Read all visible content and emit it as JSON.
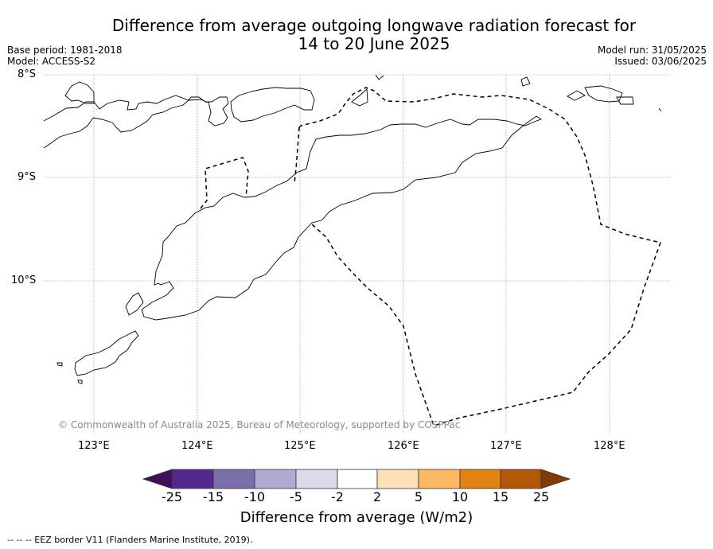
{
  "title": {
    "line1": "Difference from average outgoing longwave radiation forecast for",
    "line2": "14 to 20 June 2025"
  },
  "meta": {
    "base_period": "Base period: 1981-2018",
    "model": "Model: ACCESS-S2",
    "model_run": "Model run: 31/05/2025",
    "issued": "Issued: 03/06/2025"
  },
  "map": {
    "lat_labels": [
      "8°S",
      "9°S",
      "10°S"
    ],
    "lon_labels": [
      "123°E",
      "124°E",
      "125°E",
      "126°E",
      "127°E",
      "128°E"
    ],
    "copyright": "© Commonwealth of Australia 2025, Bureau of Meteorology, supported by COSPPac"
  },
  "colorbar": {
    "label": "Difference from average (W/m2)",
    "ticks": [
      "-25",
      "-15",
      "-10",
      "-5",
      "-2",
      "2",
      "5",
      "10",
      "15",
      "25"
    ],
    "colors": [
      "#3f0f5a",
      "#54278f",
      "#7b6eaa",
      "#b0a9d2",
      "#dadaeb",
      "#ffffff",
      "#fee0b6",
      "#fdb863",
      "#e08214",
      "#b35806",
      "#7f3b08"
    ]
  },
  "legend": {
    "eez_note": "--  --  -- EEZ border V11 (Flanders Marine Institute, 2019)."
  }
}
